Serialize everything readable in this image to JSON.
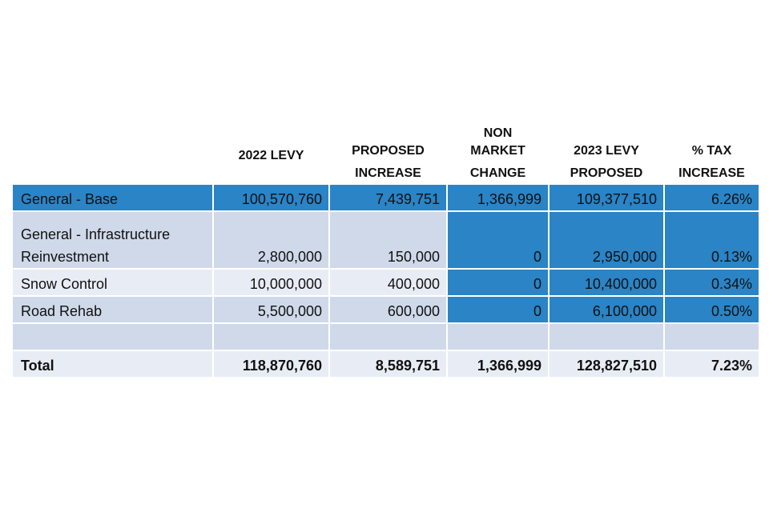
{
  "headers": {
    "label": "",
    "levy_2022": [
      "2022 LEVY"
    ],
    "proposed_increase": [
      "PROPOSED",
      "INCREASE"
    ],
    "non_market_change": [
      "NON",
      "MARKET",
      "CHANGE"
    ],
    "levy_2023": [
      "2023 LEVY",
      "PROPOSED"
    ],
    "tax_increase": [
      "% TAX",
      "INCREASE"
    ]
  },
  "rows": [
    {
      "label_lines": [
        "General - Base"
      ],
      "levy_2022": "100,570,760",
      "proposed_increase": "7,439,751",
      "non_market_change": "1,366,999",
      "levy_2023": "109,377,510",
      "tax_increase": "6.26%"
    },
    {
      "label_lines": [
        "General - Infrastructure",
        "Reinvestment"
      ],
      "levy_2022": "2,800,000",
      "proposed_increase": "150,000",
      "non_market_change": "0",
      "levy_2023": "2,950,000",
      "tax_increase": "0.13%"
    },
    {
      "label_lines": [
        "Snow Control"
      ],
      "levy_2022": "10,000,000",
      "proposed_increase": "400,000",
      "non_market_change": "0",
      "levy_2023": "10,400,000",
      "tax_increase": "0.34%"
    },
    {
      "label_lines": [
        "Road Rehab"
      ],
      "levy_2022": "5,500,000",
      "proposed_increase": "600,000",
      "non_market_change": "0",
      "levy_2023": "6,100,000",
      "tax_increase": "0.50%"
    },
    {
      "label_lines": [
        ""
      ],
      "levy_2022": "",
      "proposed_increase": "",
      "non_market_change": "",
      "levy_2023": "",
      "tax_increase": ""
    }
  ],
  "total": {
    "label": "Total",
    "levy_2022": "118,870,760",
    "proposed_increase": "8,589,751",
    "non_market_change": "1,366,999",
    "levy_2023": "128,827,510",
    "tax_increase": "7.23%"
  },
  "colors": {
    "blue": "#2a84c6",
    "light1": "#cfd9e9",
    "light2": "#e8edf5"
  }
}
